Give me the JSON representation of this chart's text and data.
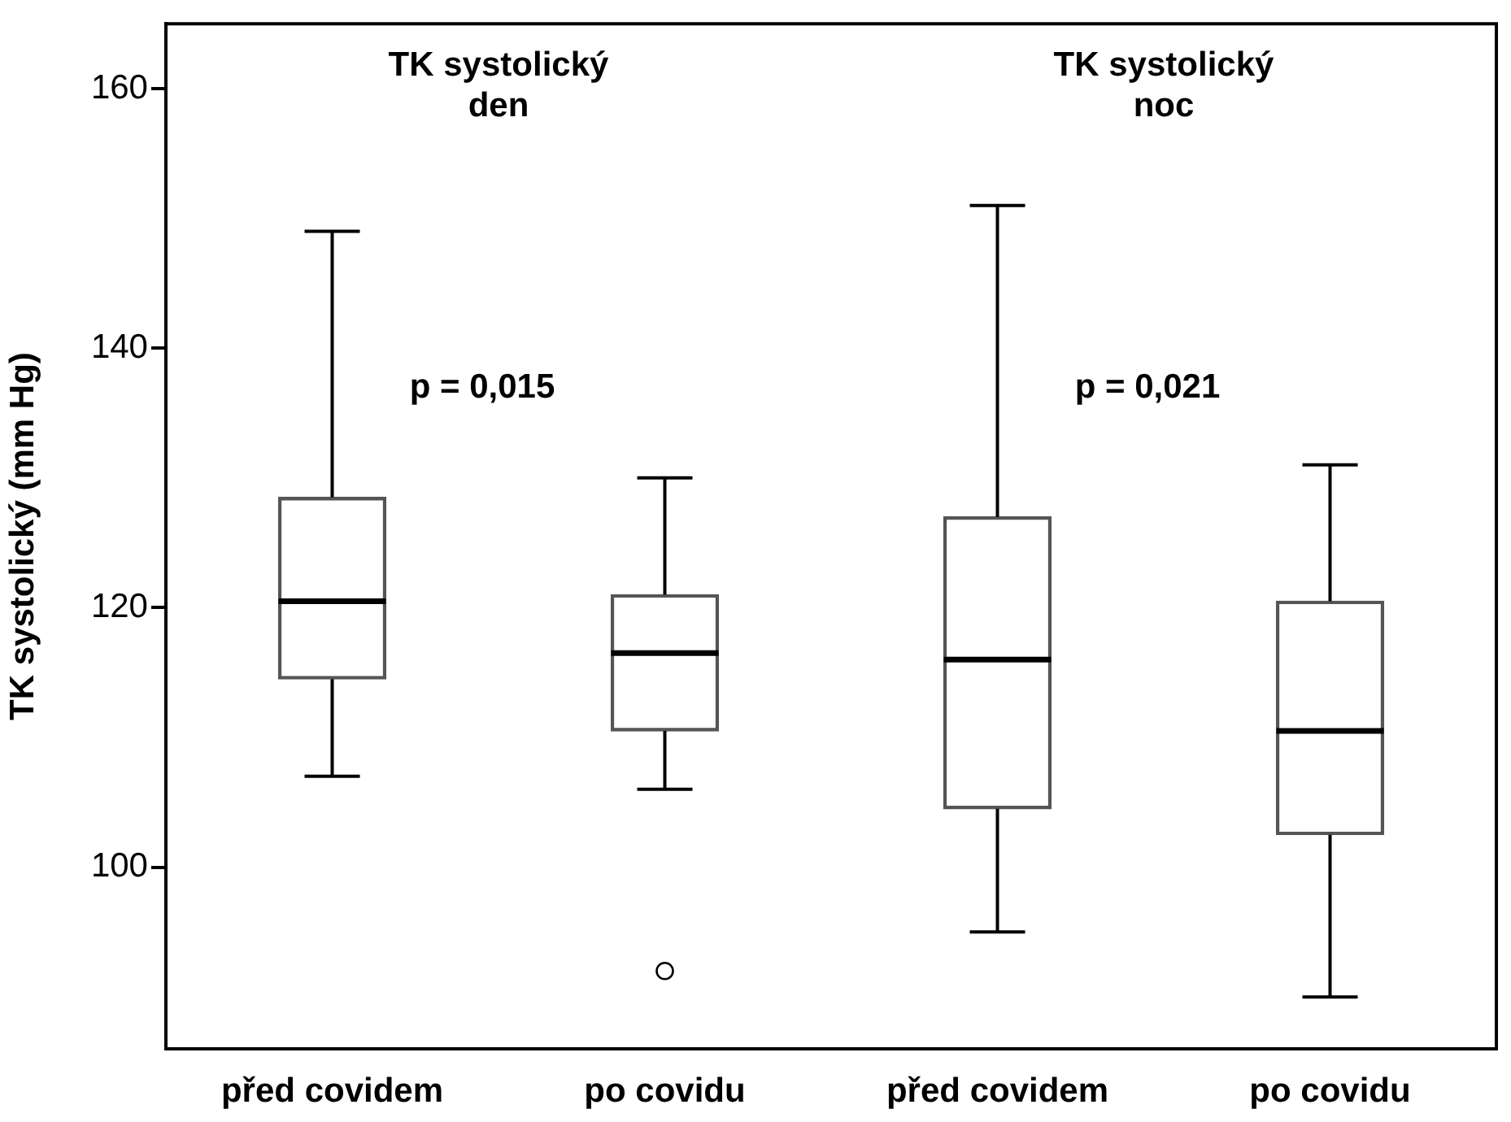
{
  "chart_data": {
    "type": "box",
    "ylabel": "TK systolický (mm Hg)",
    "categories": [
      "před covidem",
      "po covidu",
      "před covidem",
      "po covidu"
    ],
    "boxes": [
      {
        "low": 107,
        "q1": 114.5,
        "median": 120.5,
        "q3": 128.5,
        "high": 149
      },
      {
        "low": 106,
        "q1": 110.5,
        "median": 116.5,
        "q3": 121,
        "high": 130,
        "outliers": [
          92
        ]
      },
      {
        "low": 95,
        "q1": 104.5,
        "median": 116,
        "q3": 127,
        "high": 151
      },
      {
        "low": 90,
        "q1": 102.5,
        "median": 110.5,
        "q3": 120.5,
        "high": 131
      }
    ],
    "color": "#555555",
    "ylim": [
      86,
      165
    ],
    "yticks": [
      100,
      120,
      140,
      160
    ],
    "annotations": [
      "TK systolický\nden",
      "TK systolický\nnoc",
      "p = 0,015",
      "p = 0,021"
    ]
  }
}
